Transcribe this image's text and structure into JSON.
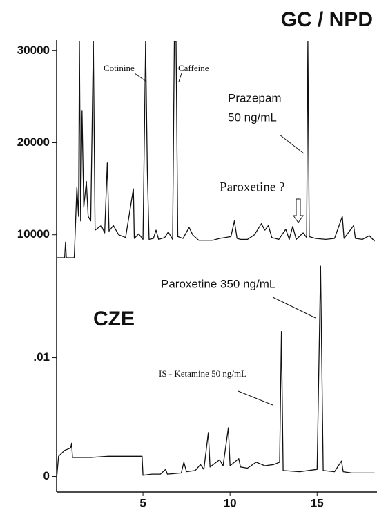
{
  "chart_data": [
    {
      "type": "line",
      "title": "GC / NPD",
      "annotations": [
        "Cotinine",
        "Caffeine",
        "Prazepam",
        "50 ng/mL",
        "Paroxetine ?"
      ],
      "xlim": [
        0,
        18.4
      ],
      "ylim": [
        6600,
        31000
      ],
      "yticks": [
        10000,
        20000,
        30000
      ],
      "series": [
        {
          "color": "#111111",
          "x": [
            0.05,
            0.5,
            0.55,
            0.6,
            1.05,
            1.1,
            1.2,
            1.3,
            1.35,
            1.42,
            1.5,
            1.6,
            1.75,
            1.85,
            2.0,
            2.15,
            2.25,
            2.6,
            2.8,
            2.95,
            3.05,
            3.3,
            3.6,
            4.0,
            4.45,
            4.5,
            4.75,
            5.0,
            5.15,
            5.25,
            5.35,
            5.6,
            5.75,
            5.9,
            6.25,
            6.45,
            6.7,
            6.8,
            6.9,
            7.0,
            7.3,
            7.65,
            7.85,
            8.2,
            9.0,
            9.4,
            10.05,
            10.25,
            10.4,
            10.6,
            11.0,
            11.4,
            11.8,
            12.0,
            12.2,
            12.4,
            12.8,
            13.2,
            13.4,
            13.6,
            13.8,
            14.2,
            14.4,
            14.47,
            14.55,
            14.9,
            15.5,
            16.0,
            16.45,
            16.55,
            16.9,
            17.1,
            17.2,
            17.6,
            18.0,
            18.3
          ],
          "values": [
            7500,
            7500,
            9200,
            7500,
            7500,
            9800,
            15200,
            12000,
            31000,
            11500,
            23500,
            13000,
            15800,
            12000,
            11500,
            31000,
            10500,
            11000,
            10200,
            17800,
            10400,
            11000,
            10000,
            9700,
            15000,
            9600,
            10100,
            9500,
            31000,
            17000,
            9500,
            9600,
            10500,
            9500,
            9700,
            10300,
            9500,
            31000,
            31000,
            9800,
            9600,
            10800,
            10000,
            9400,
            9400,
            9600,
            9800,
            11500,
            9600,
            9500,
            9500,
            10000,
            11200,
            10500,
            11000,
            9700,
            9500,
            10600,
            9500,
            10900,
            9500,
            10200,
            9700,
            31000,
            9800,
            9600,
            9500,
            9600,
            12000,
            9600,
            10500,
            11000,
            9600,
            9500,
            9900,
            9300
          ]
        }
      ]
    },
    {
      "type": "line",
      "title": "CZE",
      "annotations": [
        "Paroxetine 350 ng/mL",
        "IS - Ketamine 50 ng/mL"
      ],
      "xlim": [
        0,
        18.4
      ],
      "ylim": [
        -0.0009,
        0.018
      ],
      "yticks": [
        0,
        {
          "value": 0.01,
          "label": ".01"
        }
      ],
      "xticks": [
        5,
        10,
        15
      ],
      "series": [
        {
          "color": "#111111",
          "x": [
            0.05,
            0.15,
            0.5,
            0.85,
            0.9,
            0.95,
            2.0,
            3.0,
            4.0,
            4.95,
            5.0,
            5.5,
            6.0,
            6.3,
            6.4,
            7.2,
            7.35,
            7.5,
            8.0,
            8.3,
            8.5,
            8.75,
            8.85,
            9.4,
            9.6,
            9.9,
            10.0,
            10.5,
            10.6,
            11.0,
            11.5,
            12.0,
            12.5,
            12.85,
            12.95,
            13.05,
            14.0,
            15.0,
            15.2,
            15.35,
            16.0,
            16.4,
            16.5,
            17.0,
            18.0,
            18.3
          ],
          "values": [
            0,
            0.0017,
            0.0022,
            0.0024,
            0.0028,
            0.0016,
            0.0016,
            0.0017,
            0.0017,
            0.0017,
            0.0001,
            0.0002,
            0.0002,
            0.0006,
            0.0002,
            0.0003,
            0.0012,
            0.0004,
            0.0005,
            0.001,
            0.0006,
            0.0037,
            0.0008,
            0.0014,
            0.0009,
            0.0041,
            0.0009,
            0.0015,
            0.0008,
            0.0007,
            0.0012,
            0.0009,
            0.001,
            0.0012,
            0.0122,
            0.0005,
            0.0004,
            0.0006,
            0.0177,
            0.0005,
            0.0004,
            0.0013,
            0.0004,
            0.0003,
            0.0003,
            0.0003
          ]
        }
      ]
    }
  ]
}
